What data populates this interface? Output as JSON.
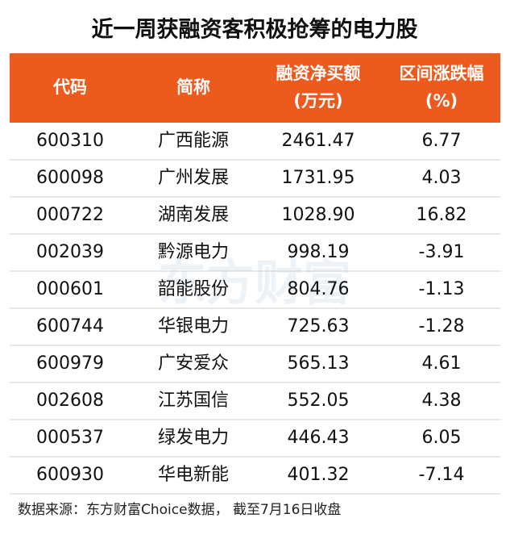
{
  "title": "近一周获融资客积极抢筹的电力股",
  "table": {
    "header": [
      [
        "代码"
      ],
      [
        "简称"
      ],
      [
        "融资净买额",
        "(万元)"
      ],
      [
        "区间涨跌幅",
        "(%)"
      ]
    ],
    "rows": [
      [
        "600310",
        "广西能源",
        "2461.47",
        "6.77"
      ],
      [
        "600098",
        "广州发展",
        "1731.95",
        "4.03"
      ],
      [
        "000722",
        "湖南发展",
        "1028.90",
        "16.82"
      ],
      [
        "002039",
        "黔源电力",
        "998.19",
        "-3.91"
      ],
      [
        "000601",
        "韶能股份",
        "804.76",
        "-1.13"
      ],
      [
        "600744",
        "华银电力",
        "725.63",
        "-1.28"
      ],
      [
        "600979",
        "广安爱众",
        "565.13",
        "4.61"
      ],
      [
        "002608",
        "江苏国信",
        "552.05",
        "4.38"
      ],
      [
        "000537",
        "绿发电力",
        "446.43",
        "6.05"
      ],
      [
        "600930",
        "华电新能",
        "401.32",
        "-7.14"
      ]
    ]
  },
  "watermark": "东方财富",
  "source": "数据来源：东方财富Choice数据， 截至7月16日收盘"
}
